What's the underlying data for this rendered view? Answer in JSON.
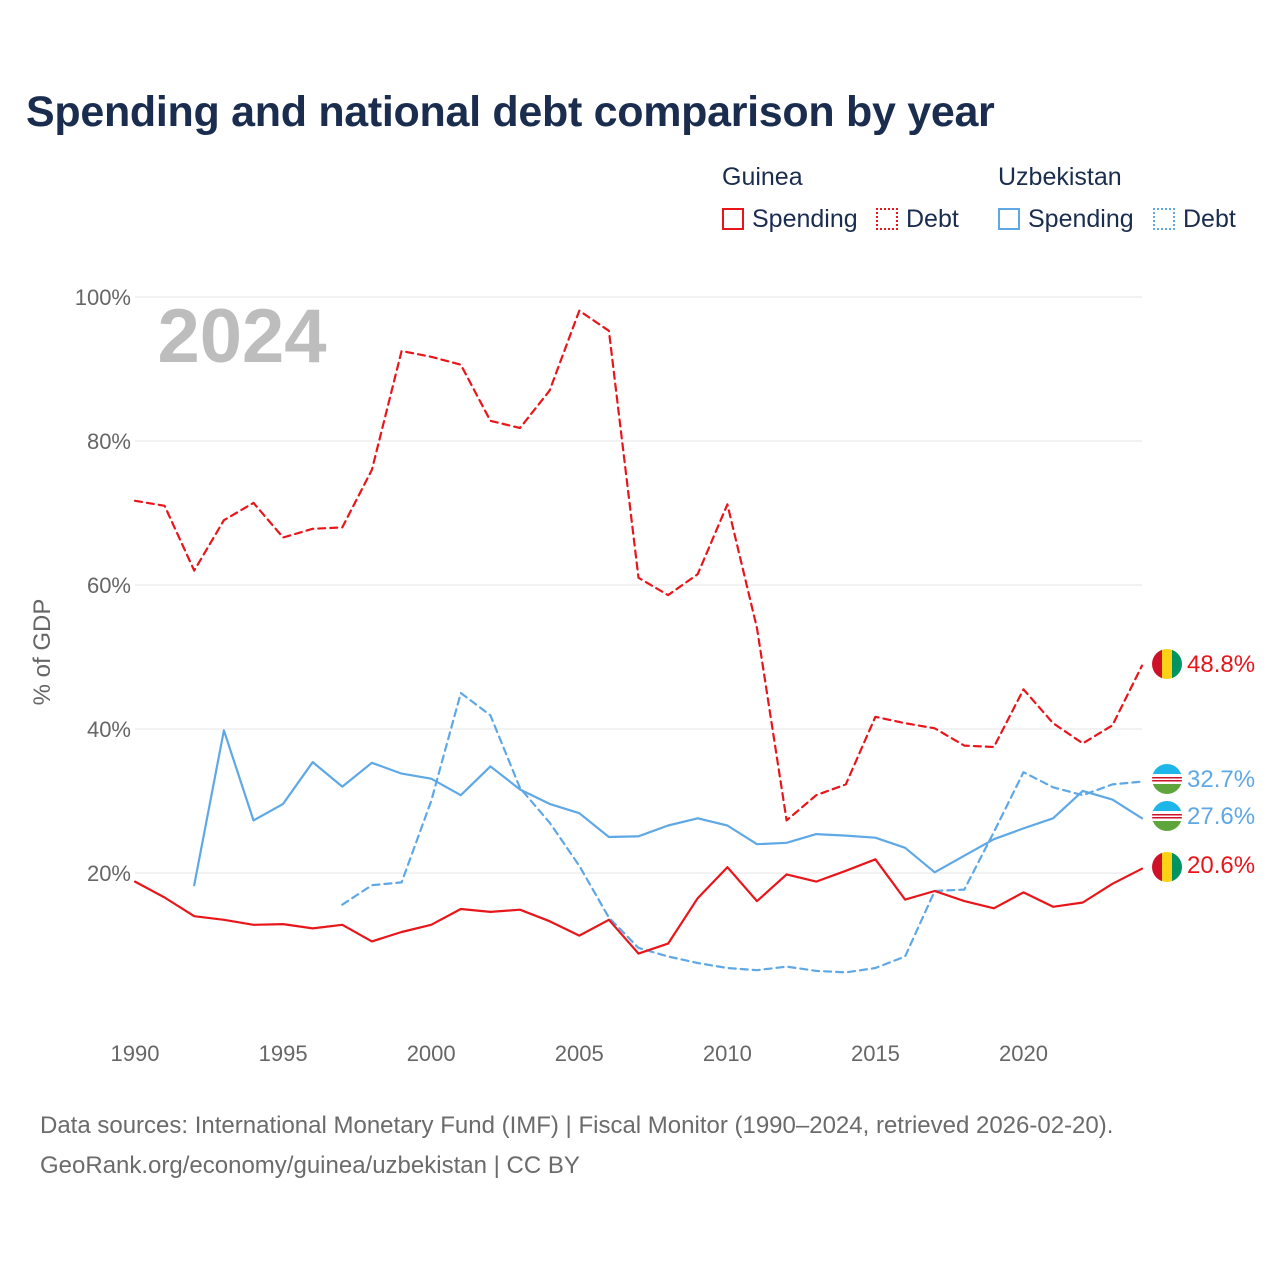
{
  "title": "Spending and national debt comparison by year",
  "legend": {
    "groups": [
      {
        "country": "Guinea",
        "color": "#e8161b",
        "items": [
          {
            "label": "Spending",
            "style": "solid"
          },
          {
            "label": "Debt",
            "style": "dotted"
          }
        ]
      },
      {
        "country": "Uzbekistan",
        "color": "#5fa8e6",
        "items": [
          {
            "label": "Spending",
            "style": "solid"
          },
          {
            "label": "Debt",
            "style": "dotted"
          }
        ]
      }
    ]
  },
  "source": {
    "line1": "Data sources: International Monetary Fund (IMF) | Fiscal Monitor (1990–2024, retrieved 2026-02-20).",
    "line2": "GeoRank.org/economy/guinea/uzbekistan | CC BY"
  },
  "chart_data": {
    "type": "line",
    "title": "Spending and national debt comparison by year",
    "year_label": "2024",
    "xlabel": "",
    "ylabel": "% of GDP",
    "xlim": [
      1990,
      2024
    ],
    "ylim": [
      0,
      100
    ],
    "x_ticks": [
      "1990",
      "1995",
      "2000",
      "2005",
      "2010",
      "2015",
      "2020"
    ],
    "y_ticks": [
      {
        "value": 20,
        "label": "20%"
      },
      {
        "value": 40,
        "label": "40%"
      },
      {
        "value": 60,
        "label": "60%"
      },
      {
        "value": 80,
        "label": "80%"
      },
      {
        "value": 100,
        "label": "100%"
      }
    ],
    "grid": true,
    "series": [
      {
        "name": "Guinea Debt",
        "country": "Guinea",
        "metric": "Debt",
        "color": "#e8161b",
        "dash": true,
        "x": [
          1990,
          1991,
          1992,
          1993,
          1994,
          1995,
          1996,
          1997,
          1998,
          1999,
          2000,
          2001,
          2002,
          2003,
          2004,
          2005,
          2006,
          2007,
          2008,
          2009,
          2010,
          2011,
          2012,
          2013,
          2014,
          2015,
          2016,
          2017,
          2018,
          2019,
          2020,
          2021,
          2022,
          2023,
          2024
        ],
        "values": [
          71.7,
          71.0,
          62.0,
          69.0,
          71.4,
          66.6,
          67.8,
          68.0,
          76.0,
          92.5,
          91.7,
          90.6,
          82.8,
          81.8,
          87.0,
          98.1,
          95.3,
          61.0,
          58.6,
          61.5,
          71.2,
          54.0,
          27.3,
          30.8,
          32.3,
          41.7,
          40.8,
          40.1,
          37.7,
          37.5,
          45.5,
          40.8,
          38.0,
          40.5,
          48.8
        ],
        "end_label": "48.8%"
      },
      {
        "name": "Uzbekistan Debt",
        "country": "Uzbekistan",
        "metric": "Debt",
        "color": "#5fa8e6",
        "dash": true,
        "x": [
          1997,
          1998,
          1999,
          2000,
          2001,
          2002,
          2003,
          2004,
          2005,
          2006,
          2007,
          2008,
          2009,
          2010,
          2011,
          2012,
          2013,
          2014,
          2015,
          2016,
          2017,
          2018,
          2019,
          2020,
          2021,
          2022,
          2023,
          2024
        ],
        "values": [
          15.6,
          18.3,
          18.7,
          30.0,
          45.0,
          41.9,
          31.8,
          27.0,
          21.0,
          13.8,
          9.6,
          8.4,
          7.5,
          6.8,
          6.5,
          7.0,
          6.4,
          6.2,
          6.8,
          8.4,
          17.5,
          17.7,
          25.7,
          34.0,
          31.9,
          30.8,
          32.3,
          32.7
        ],
        "end_label": "32.7%"
      },
      {
        "name": "Uzbekistan Spending",
        "country": "Uzbekistan",
        "metric": "Spending",
        "color": "#5fa8e6",
        "dash": false,
        "x": [
          1992,
          1993,
          1994,
          1995,
          1996,
          1997,
          1998,
          1999,
          2000,
          2001,
          2002,
          2003,
          2004,
          2005,
          2006,
          2007,
          2008,
          2009,
          2010,
          2011,
          2012,
          2013,
          2014,
          2015,
          2016,
          2017,
          2018,
          2019,
          2020,
          2021,
          2022,
          2023,
          2024
        ],
        "values": [
          18.3,
          39.8,
          27.3,
          29.6,
          35.4,
          32.0,
          35.3,
          33.8,
          33.1,
          30.8,
          34.8,
          31.6,
          29.6,
          28.3,
          25.0,
          25.1,
          26.6,
          27.6,
          26.6,
          24.0,
          24.2,
          25.4,
          25.2,
          24.9,
          23.5,
          20.1,
          22.4,
          24.7,
          26.2,
          27.6,
          31.4,
          30.2,
          27.6
        ],
        "end_label": "27.6%"
      },
      {
        "name": "Guinea Spending",
        "country": "Guinea",
        "metric": "Spending",
        "color": "#e8161b",
        "dash": false,
        "x": [
          1990,
          1991,
          1992,
          1993,
          1994,
          1995,
          1996,
          1997,
          1998,
          1999,
          2000,
          2001,
          2002,
          2003,
          2004,
          2005,
          2006,
          2007,
          2008,
          2009,
          2010,
          2011,
          2012,
          2013,
          2014,
          2015,
          2016,
          2017,
          2018,
          2019,
          2020,
          2021,
          2022,
          2023,
          2024
        ],
        "values": [
          18.8,
          16.6,
          14.0,
          13.5,
          12.8,
          12.9,
          12.3,
          12.8,
          10.5,
          11.8,
          12.8,
          15.0,
          14.6,
          14.9,
          13.3,
          11.3,
          13.5,
          8.8,
          10.2,
          16.5,
          20.8,
          16.1,
          19.8,
          18.8,
          20.3,
          21.9,
          16.3,
          17.5,
          16.1,
          15.1,
          17.3,
          15.3,
          15.9,
          18.5,
          20.6
        ],
        "end_label": "20.6%"
      }
    ]
  }
}
